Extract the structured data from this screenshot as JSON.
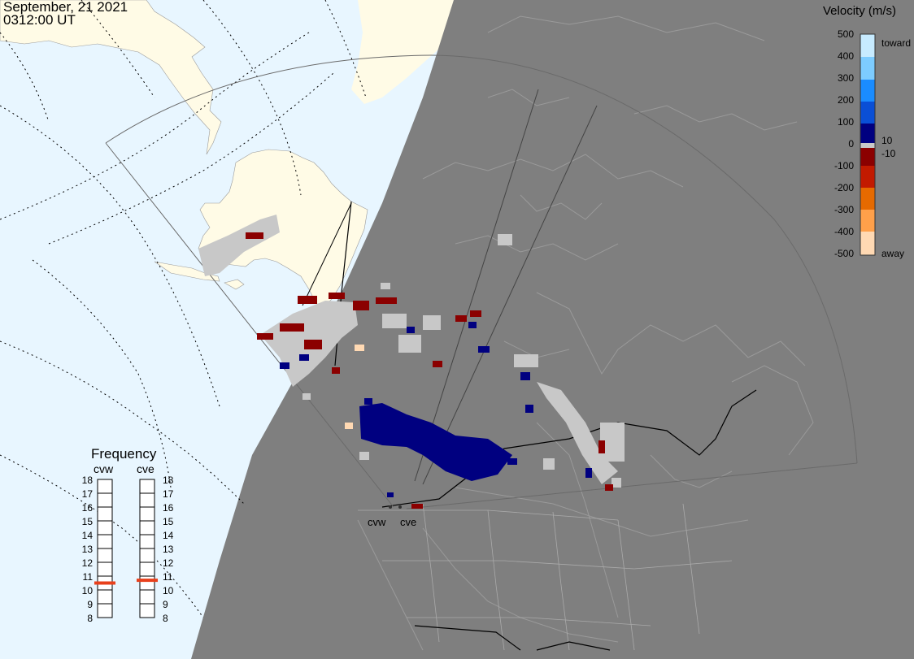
{
  "header": {
    "date": "September, 21 2021",
    "time": "0312:00 UT"
  },
  "colorbar": {
    "title": "Velocity (m/s)",
    "ticks": [
      "500",
      "400",
      "300",
      "200",
      "100",
      "0",
      "-100",
      "-200",
      "-300",
      "-400",
      "-500"
    ],
    "extra_ticks": [
      "10",
      "-10"
    ],
    "toward_label": "toward",
    "away_label": "away",
    "colors": {
      "toward_high": "#c7ebff",
      "toward_mid": "#1a8cff",
      "toward_low": "#000080",
      "zero": "#c8c8c8",
      "away_low": "#8b0000",
      "away_mid": "#e66a00",
      "away_high": "#ffd9b3"
    }
  },
  "frequency": {
    "title": "Frequency",
    "radars": [
      {
        "name": "cvw",
        "value_mhz": 10.5
      },
      {
        "name": "cve",
        "value_mhz": 10.7
      }
    ],
    "scale": [
      "18",
      "17",
      "16",
      "15",
      "14",
      "13",
      "12",
      "11",
      "10",
      "9",
      "8"
    ],
    "marker_color": "#e8401c"
  },
  "map": {
    "colors": {
      "ocean": "#e8f6ff",
      "land_day": "#fffbe6",
      "night": "#7f7f7f",
      "night_lines": "#9a9a9a",
      "grid": "#000000",
      "scatter_gray": "#c8c8c8"
    },
    "radar_sites": [
      "cvw",
      "cve"
    ]
  }
}
